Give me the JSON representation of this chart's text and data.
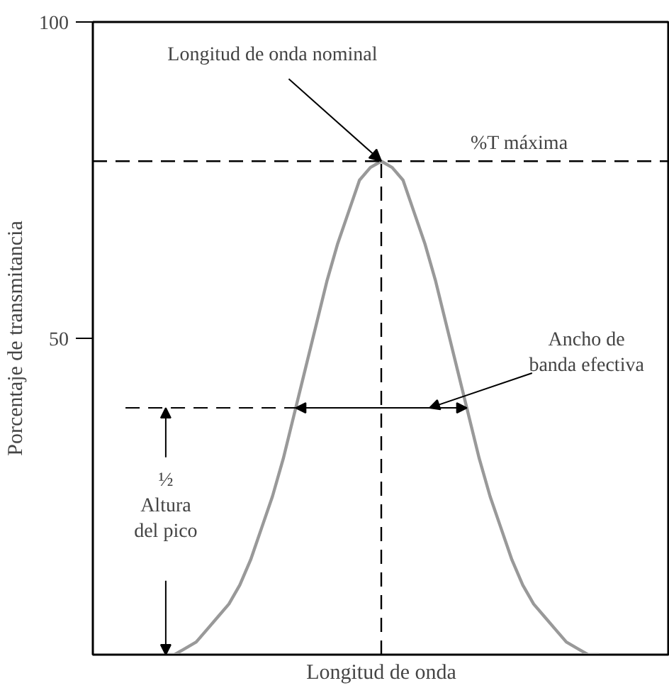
{
  "chart_data": {
    "type": "line",
    "xlabel": "Longitud de onda",
    "ylabel": "Porcentaje de transmitancia",
    "categories": [
      null,
      null,
      null,
      null,
      null,
      null,
      null,
      null,
      null,
      null,
      null,
      null,
      null,
      null,
      null,
      null,
      null,
      null,
      null,
      null,
      null,
      null,
      null,
      null,
      null,
      null,
      null,
      null,
      null,
      null,
      null,
      null,
      null,
      null,
      null,
      null,
      null,
      null,
      null,
      null,
      null,
      null,
      null,
      null,
      null,
      null,
      null,
      null,
      null,
      null,
      null,
      null,
      null
    ],
    "series": [
      {
        "color": "#999999",
        "values": [
          null,
          null,
          null,
          null,
          null,
          null,
          0,
          0,
          1,
          2,
          4,
          6,
          8,
          11,
          15,
          20,
          25,
          31,
          38,
          45,
          52,
          59,
          65,
          70,
          75,
          77,
          78,
          77,
          75,
          70,
          65,
          59,
          52,
          45,
          38,
          31,
          25,
          20,
          15,
          11,
          8,
          6,
          4,
          2,
          1,
          0,
          0,
          null,
          null,
          null,
          null,
          null,
          null
        ]
      }
    ],
    "ylim": [
      0,
      100
    ],
    "yticks": [
      50,
      100
    ],
    "grid": false,
    "tick_labels": "y",
    "marker": "none",
    "line_style": "solid",
    "ref_lines": [
      {
        "axis": "y",
        "value": 78,
        "label": "%T máxima",
        "line_style": "dashed"
      },
      {
        "axis": "y",
        "value": 39,
        "label": null,
        "line_style": "dashed"
      }
    ],
    "annotations": [
      "Longitud de onda nominal",
      "Ancho de\nbanda efectiva",
      "½\nAltura\ndel pico"
    ]
  }
}
